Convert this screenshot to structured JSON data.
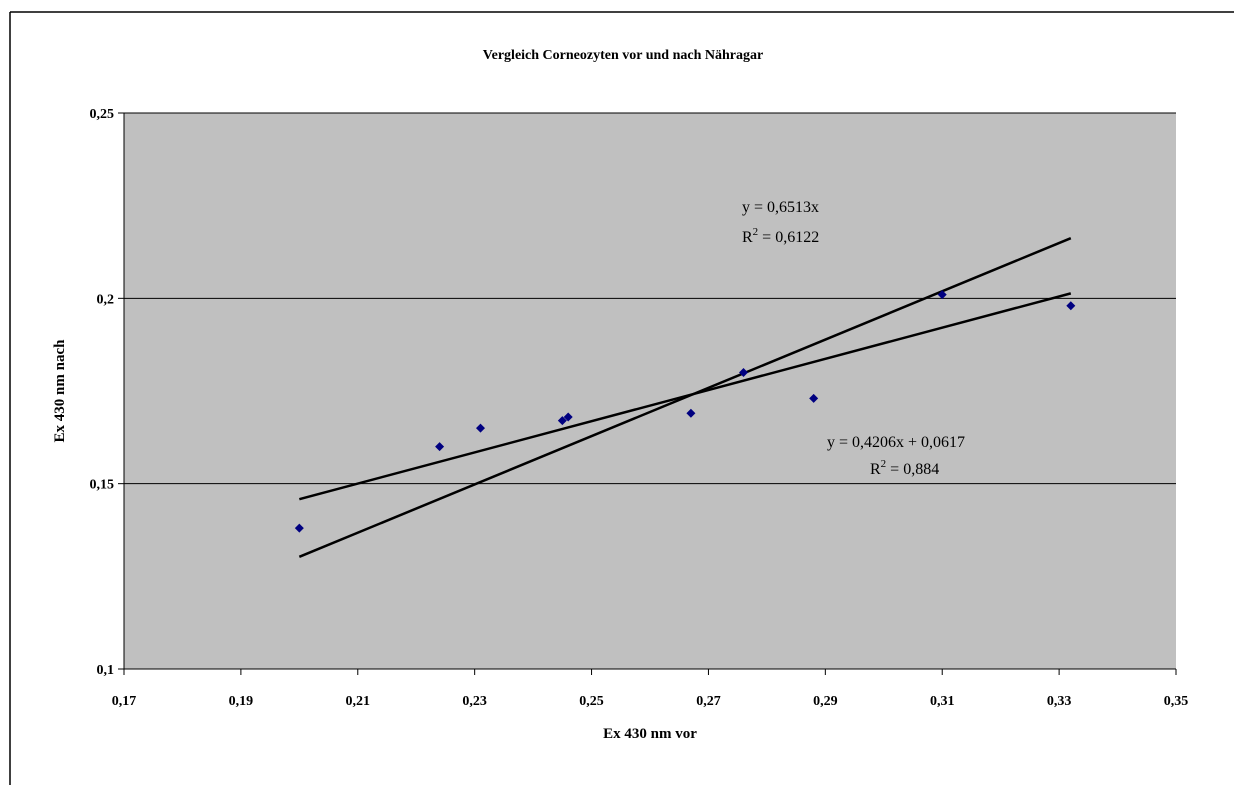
{
  "chart_data": {
    "type": "scatter",
    "title": "Vergleich Corneozyten vor und nach Nähragar",
    "xlabel": "Ex 430 nm vor",
    "ylabel": "Ex 430 nm nach",
    "xlim": [
      0.17,
      0.35
    ],
    "ylim": [
      0.1,
      0.25
    ],
    "x_ticks": [
      0.17,
      0.19,
      0.21,
      0.23,
      0.25,
      0.27,
      0.29,
      0.31,
      0.33,
      0.35
    ],
    "x_tick_labels": [
      "0,17",
      "0,19",
      "0,21",
      "0,23",
      "0,25",
      "0,27",
      "0,29",
      "0,31",
      "0,33",
      "0,35"
    ],
    "y_ticks": [
      0.1,
      0.15,
      0.2,
      0.25
    ],
    "y_tick_labels": [
      "0,1",
      "0,15",
      "0,2",
      "0,25"
    ],
    "grid": "horizontal",
    "plot_background": "#c0c0c0",
    "marker_color": "#000080",
    "series": [
      {
        "points": [
          [
            0.2,
            0.138
          ],
          [
            0.224,
            0.16
          ],
          [
            0.231,
            0.165
          ],
          [
            0.245,
            0.167
          ],
          [
            0.246,
            0.168
          ],
          [
            0.267,
            0.169
          ],
          [
            0.276,
            0.18
          ],
          [
            0.288,
            0.173
          ],
          [
            0.31,
            0.201
          ],
          [
            0.332,
            0.198
          ]
        ]
      }
    ],
    "trendlines": [
      {
        "slope": 0.6513,
        "intercept": 0,
        "x_range": [
          0.2,
          0.332
        ],
        "equation": "y = 0,6513x",
        "r2_prefix": "R",
        "r2_sup": "2",
        "r2_value": " = 0,6122"
      },
      {
        "slope": 0.4206,
        "intercept": 0.0617,
        "x_range": [
          0.2,
          0.332
        ],
        "equation": "y = 0,4206x + 0,0617",
        "r2_prefix": "R",
        "r2_sup": "2",
        "r2_value": " = 0,884"
      }
    ]
  }
}
